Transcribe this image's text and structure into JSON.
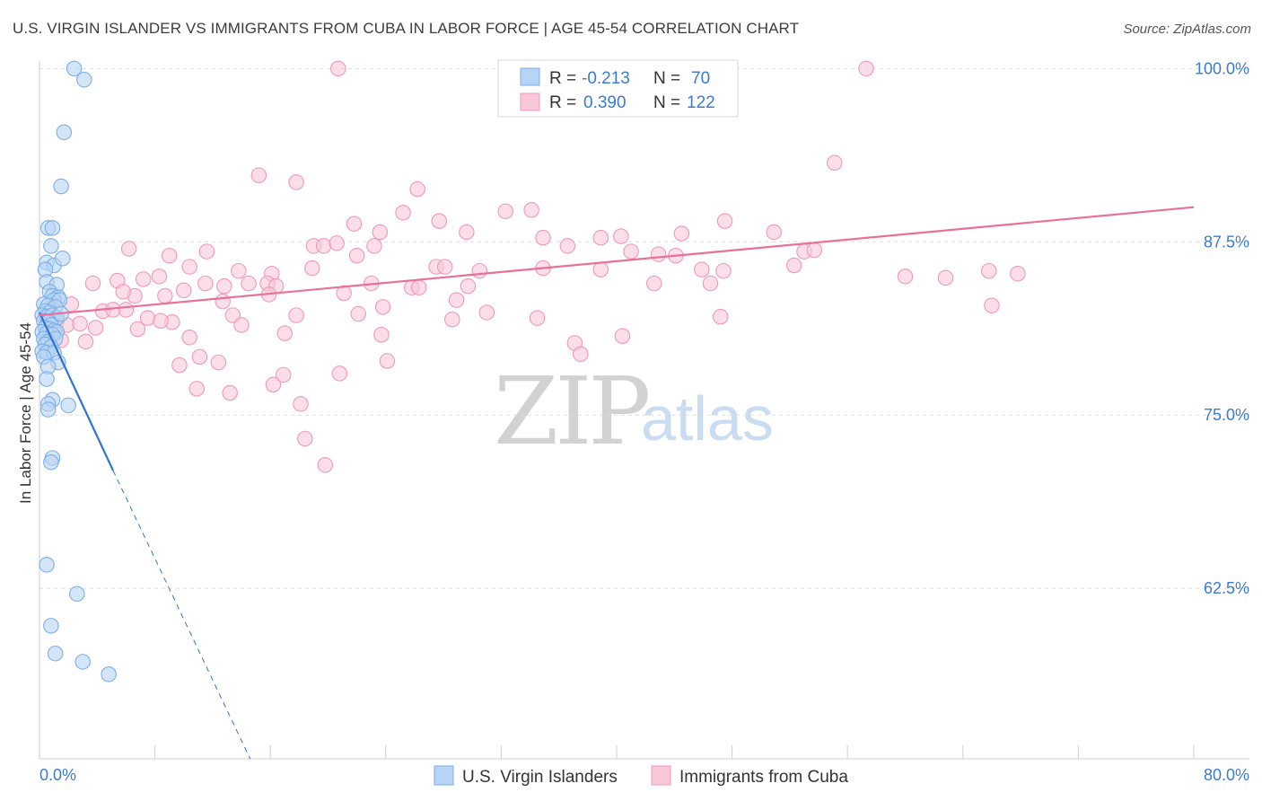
{
  "title": "U.S. VIRGIN ISLANDER VS IMMIGRANTS FROM CUBA IN LABOR FORCE | AGE 45-54 CORRELATION CHART",
  "source": "Source: ZipAtlas.com",
  "watermark": {
    "zip": "ZIP",
    "atlas": "atlas"
  },
  "legend": {
    "rows": [
      {
        "r_label": "R =",
        "r_value": "-0.213",
        "n_label": "N =",
        "n_value": "70"
      },
      {
        "r_label": "R =",
        "r_value": "0.390",
        "n_label": "N =",
        "n_value": "122"
      }
    ]
  },
  "chart_data": {
    "type": "scatter",
    "title": "U.S. VIRGIN ISLANDER VS IMMIGRANTS FROM CUBA IN LABOR FORCE | AGE 45-54 CORRELATION CHART",
    "xlabel": "",
    "ylabel": "In Labor Force | Age 45-54",
    "xlim": [
      0,
      80
    ],
    "ylim": [
      50.2,
      100.8
    ],
    "x_tick_labels": [
      "0.0%",
      "80.0%"
    ],
    "y_ticks": [
      62.5,
      75.0,
      87.5,
      100.0
    ],
    "y_tick_labels": [
      "62.5%",
      "75.0%",
      "87.5%",
      "100.0%"
    ],
    "grid": "horizontal dashed",
    "legend_position": "top-center",
    "series": [
      {
        "name": "U.S. Virgin Islanders",
        "color": "#7aaee8",
        "fill": "#b8d4f4",
        "trend": {
          "x0": 0.0,
          "y0": 82.4,
          "x1": 5.1,
          "y1": 71.0,
          "dashed_to_x": 14.6,
          "dashed_to_y": 50.2,
          "color": "#2f74d0"
        },
        "points": [
          [
            2.4,
            100.0
          ],
          [
            3.1,
            99.2
          ],
          [
            1.7,
            95.4
          ],
          [
            1.5,
            91.5
          ],
          [
            0.6,
            88.5
          ],
          [
            0.9,
            88.5
          ],
          [
            0.8,
            87.2
          ],
          [
            0.5,
            86.0
          ],
          [
            1.0,
            85.8
          ],
          [
            1.6,
            86.3
          ],
          [
            0.4,
            85.5
          ],
          [
            0.5,
            84.6
          ],
          [
            1.2,
            84.4
          ],
          [
            0.7,
            83.9
          ],
          [
            0.9,
            83.6
          ],
          [
            1.3,
            83.5
          ],
          [
            1.0,
            83.3
          ],
          [
            1.4,
            83.3
          ],
          [
            0.3,
            83.0
          ],
          [
            0.6,
            82.9
          ],
          [
            1.1,
            82.8
          ],
          [
            0.4,
            82.5
          ],
          [
            0.7,
            82.4
          ],
          [
            0.2,
            82.2
          ],
          [
            0.5,
            82.1
          ],
          [
            0.9,
            82.2
          ],
          [
            1.2,
            82.0
          ],
          [
            1.5,
            82.3
          ],
          [
            0.3,
            81.8
          ],
          [
            0.6,
            81.7
          ],
          [
            0.8,
            81.5
          ],
          [
            0.4,
            81.3
          ],
          [
            0.7,
            81.2
          ],
          [
            1.0,
            81.1
          ],
          [
            1.2,
            81.0
          ],
          [
            0.2,
            81.0
          ],
          [
            0.5,
            80.9
          ],
          [
            0.9,
            80.8
          ],
          [
            0.3,
            80.5
          ],
          [
            0.6,
            80.3
          ],
          [
            1.1,
            80.5
          ],
          [
            0.4,
            80.1
          ],
          [
            0.8,
            79.9
          ],
          [
            0.2,
            79.6
          ],
          [
            0.5,
            79.5
          ],
          [
            1.0,
            79.5
          ],
          [
            0.3,
            79.2
          ],
          [
            1.3,
            78.8
          ],
          [
            0.6,
            78.5
          ],
          [
            0.5,
            77.6
          ],
          [
            0.9,
            76.1
          ],
          [
            0.6,
            75.8
          ],
          [
            0.6,
            75.4
          ],
          [
            2.0,
            75.7
          ],
          [
            0.9,
            71.9
          ],
          [
            0.8,
            71.6
          ],
          [
            0.5,
            64.2
          ],
          [
            2.6,
            62.1
          ],
          [
            0.8,
            59.8
          ],
          [
            1.1,
            57.8
          ],
          [
            3.0,
            57.2
          ],
          [
            4.8,
            56.3
          ]
        ]
      },
      {
        "name": "Immigrants from Cuba",
        "color": "#f099b4",
        "fill": "#f9c8d8",
        "trend": {
          "x0": 0.0,
          "y0": 82.2,
          "x1": 80.0,
          "y1": 90.0,
          "color": "#e8709a"
        },
        "points": [
          [
            20.7,
            100.0
          ],
          [
            57.3,
            100.0
          ],
          [
            55.1,
            93.2
          ],
          [
            15.2,
            92.3
          ],
          [
            17.8,
            91.8
          ],
          [
            26.2,
            91.3
          ],
          [
            25.2,
            89.6
          ],
          [
            27.7,
            89.0
          ],
          [
            21.8,
            88.8
          ],
          [
            32.3,
            89.7
          ],
          [
            34.1,
            89.8
          ],
          [
            47.5,
            89.0
          ],
          [
            23.6,
            88.2
          ],
          [
            29.6,
            88.2
          ],
          [
            34.9,
            87.8
          ],
          [
            38.9,
            87.8
          ],
          [
            40.3,
            87.9
          ],
          [
            44.5,
            88.1
          ],
          [
            50.9,
            88.2
          ],
          [
            19.0,
            87.2
          ],
          [
            19.7,
            87.2
          ],
          [
            20.6,
            87.4
          ],
          [
            23.2,
            87.2
          ],
          [
            22.0,
            86.5
          ],
          [
            11.6,
            86.8
          ],
          [
            6.2,
            87.0
          ],
          [
            36.6,
            87.2
          ],
          [
            41.0,
            86.8
          ],
          [
            42.9,
            86.6
          ],
          [
            44.1,
            86.5
          ],
          [
            53.0,
            86.8
          ],
          [
            53.7,
            86.9
          ],
          [
            9.0,
            86.5
          ],
          [
            10.4,
            85.7
          ],
          [
            13.8,
            85.4
          ],
          [
            16.1,
            85.2
          ],
          [
            18.9,
            85.6
          ],
          [
            27.5,
            85.7
          ],
          [
            28.1,
            85.7
          ],
          [
            30.5,
            85.4
          ],
          [
            34.9,
            85.6
          ],
          [
            38.9,
            85.5
          ],
          [
            45.9,
            85.5
          ],
          [
            47.4,
            85.4
          ],
          [
            52.3,
            85.8
          ],
          [
            60.0,
            85.0
          ],
          [
            62.8,
            84.9
          ],
          [
            65.8,
            85.4
          ],
          [
            67.8,
            85.2
          ],
          [
            8.3,
            85.0
          ],
          [
            7.2,
            84.8
          ],
          [
            5.4,
            84.7
          ],
          [
            3.7,
            84.5
          ],
          [
            11.5,
            84.5
          ],
          [
            12.8,
            84.3
          ],
          [
            14.5,
            84.5
          ],
          [
            15.8,
            84.5
          ],
          [
            16.4,
            84.3
          ],
          [
            23.0,
            84.5
          ],
          [
            25.8,
            84.2
          ],
          [
            29.7,
            84.3
          ],
          [
            42.6,
            84.5
          ],
          [
            46.5,
            84.5
          ],
          [
            6.6,
            83.6
          ],
          [
            5.8,
            83.9
          ],
          [
            8.7,
            83.6
          ],
          [
            10.0,
            84.0
          ],
          [
            12.7,
            83.2
          ],
          [
            15.9,
            83.7
          ],
          [
            21.1,
            83.8
          ],
          [
            28.9,
            83.3
          ],
          [
            66.0,
            82.9
          ],
          [
            2.2,
            83.0
          ],
          [
            4.4,
            82.5
          ],
          [
            5.1,
            82.6
          ],
          [
            6.0,
            82.6
          ],
          [
            7.5,
            82.0
          ],
          [
            9.2,
            81.7
          ],
          [
            13.4,
            82.2
          ],
          [
            14.0,
            81.5
          ],
          [
            17.8,
            82.2
          ],
          [
            22.1,
            82.3
          ],
          [
            23.8,
            82.8
          ],
          [
            28.6,
            81.9
          ],
          [
            34.5,
            82.0
          ],
          [
            47.2,
            82.1
          ],
          [
            1.2,
            81.8
          ],
          [
            1.9,
            81.5
          ],
          [
            2.8,
            81.6
          ],
          [
            3.9,
            81.3
          ],
          [
            6.8,
            81.2
          ],
          [
            8.4,
            81.8
          ],
          [
            17.0,
            80.9
          ],
          [
            23.7,
            80.8
          ],
          [
            40.4,
            80.7
          ],
          [
            37.1,
            80.2
          ],
          [
            1.5,
            80.4
          ],
          [
            3.2,
            80.3
          ],
          [
            9.7,
            78.6
          ],
          [
            11.1,
            79.2
          ],
          [
            12.4,
            78.8
          ],
          [
            20.8,
            78.0
          ],
          [
            24.1,
            78.9
          ],
          [
            37.5,
            79.4
          ],
          [
            16.2,
            77.2
          ],
          [
            16.9,
            77.9
          ],
          [
            10.9,
            76.9
          ],
          [
            13.2,
            76.6
          ],
          [
            18.1,
            75.8
          ],
          [
            18.4,
            73.3
          ],
          [
            19.8,
            71.4
          ],
          [
            10.4,
            80.6
          ],
          [
            26.3,
            84.2
          ],
          [
            31.0,
            82.4
          ]
        ]
      }
    ]
  }
}
